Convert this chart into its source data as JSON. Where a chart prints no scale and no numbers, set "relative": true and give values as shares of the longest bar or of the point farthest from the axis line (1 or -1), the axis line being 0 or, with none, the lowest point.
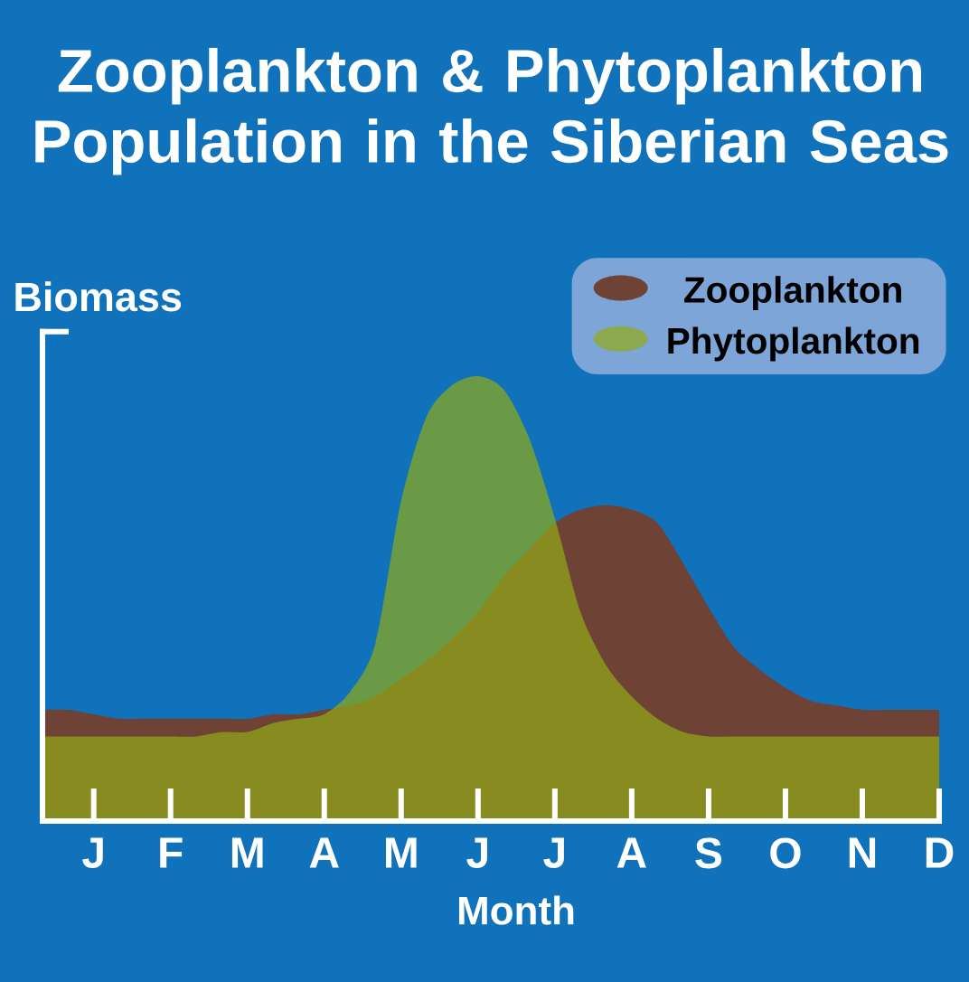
{
  "chart_data": {
    "type": "area",
    "title": "Zooplankton & Phytoplankton Population in the Siberian Seas",
    "xlabel": "Month",
    "ylabel": "Biomass",
    "relative": true,
    "tick_labels": "x",
    "legend": "top right",
    "categories": [
      null,
      null,
      "J",
      null,
      null,
      "F",
      null,
      null,
      "M",
      null,
      null,
      "A",
      null,
      null,
      "M",
      null,
      null,
      "J",
      null,
      null,
      "J",
      null,
      null,
      "A",
      null,
      null,
      "S",
      null,
      null,
      "O",
      null,
      null,
      "N",
      null,
      null,
      "D"
    ],
    "series": [
      {
        "name": "Zooplankton",
        "color": "#6e4336",
        "values": [
          0.25,
          0.25,
          0.24,
          0.23,
          0.23,
          0.23,
          0.23,
          0.23,
          0.23,
          0.24,
          0.24,
          0.25,
          0.26,
          0.28,
          0.32,
          0.36,
          0.41,
          0.47,
          0.55,
          0.61,
          0.67,
          0.7,
          0.71,
          0.7,
          0.67,
          0.58,
          0.48,
          0.39,
          0.34,
          0.3,
          0.27,
          0.26,
          0.25,
          0.25,
          0.25,
          0.25
        ]
      },
      {
        "name": "Phytoplankton",
        "color": "#6c9a48",
        "values": [
          0.19,
          0.19,
          0.19,
          0.19,
          0.19,
          0.19,
          0.19,
          0.2,
          0.2,
          0.22,
          0.23,
          0.24,
          0.29,
          0.4,
          0.72,
          0.91,
          0.98,
          1.0,
          0.97,
          0.86,
          0.68,
          0.47,
          0.35,
          0.28,
          0.23,
          0.2,
          0.19,
          0.19,
          0.19,
          0.19,
          0.19,
          0.19,
          0.19,
          0.19,
          0.19,
          0.19
        ]
      }
    ]
  }
}
